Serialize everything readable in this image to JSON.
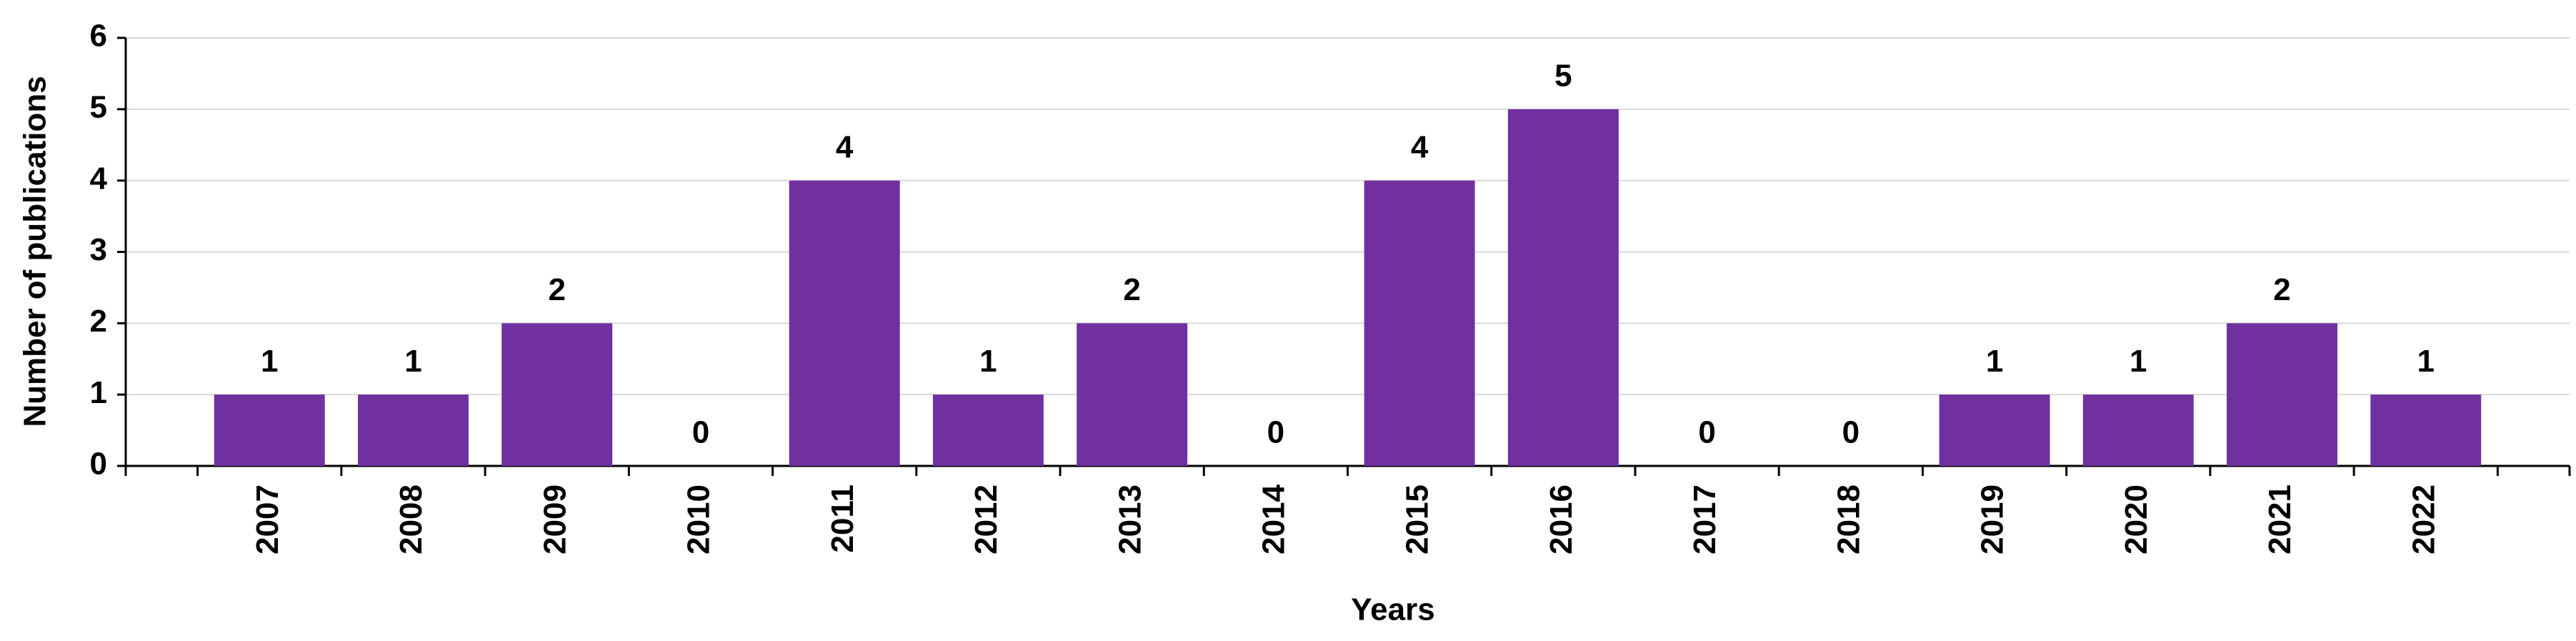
{
  "chart_data": {
    "type": "bar",
    "x_label": "Years",
    "y_label": "Number of publications",
    "categories": [
      "2007",
      "2008",
      "2009",
      "2010",
      "2011",
      "2012",
      "2013",
      "2014",
      "2015",
      "2016",
      "2017",
      "2018",
      "2019",
      "2020",
      "2021",
      "2022"
    ],
    "values": [
      1,
      1,
      2,
      0,
      4,
      1,
      2,
      0,
      4,
      5,
      0,
      0,
      1,
      1,
      2,
      1
    ],
    "color": "#7030a0",
    "ylim": [
      0,
      6
    ],
    "yticks": [
      0,
      1,
      2,
      3,
      4,
      5,
      6
    ],
    "grid": true
  }
}
